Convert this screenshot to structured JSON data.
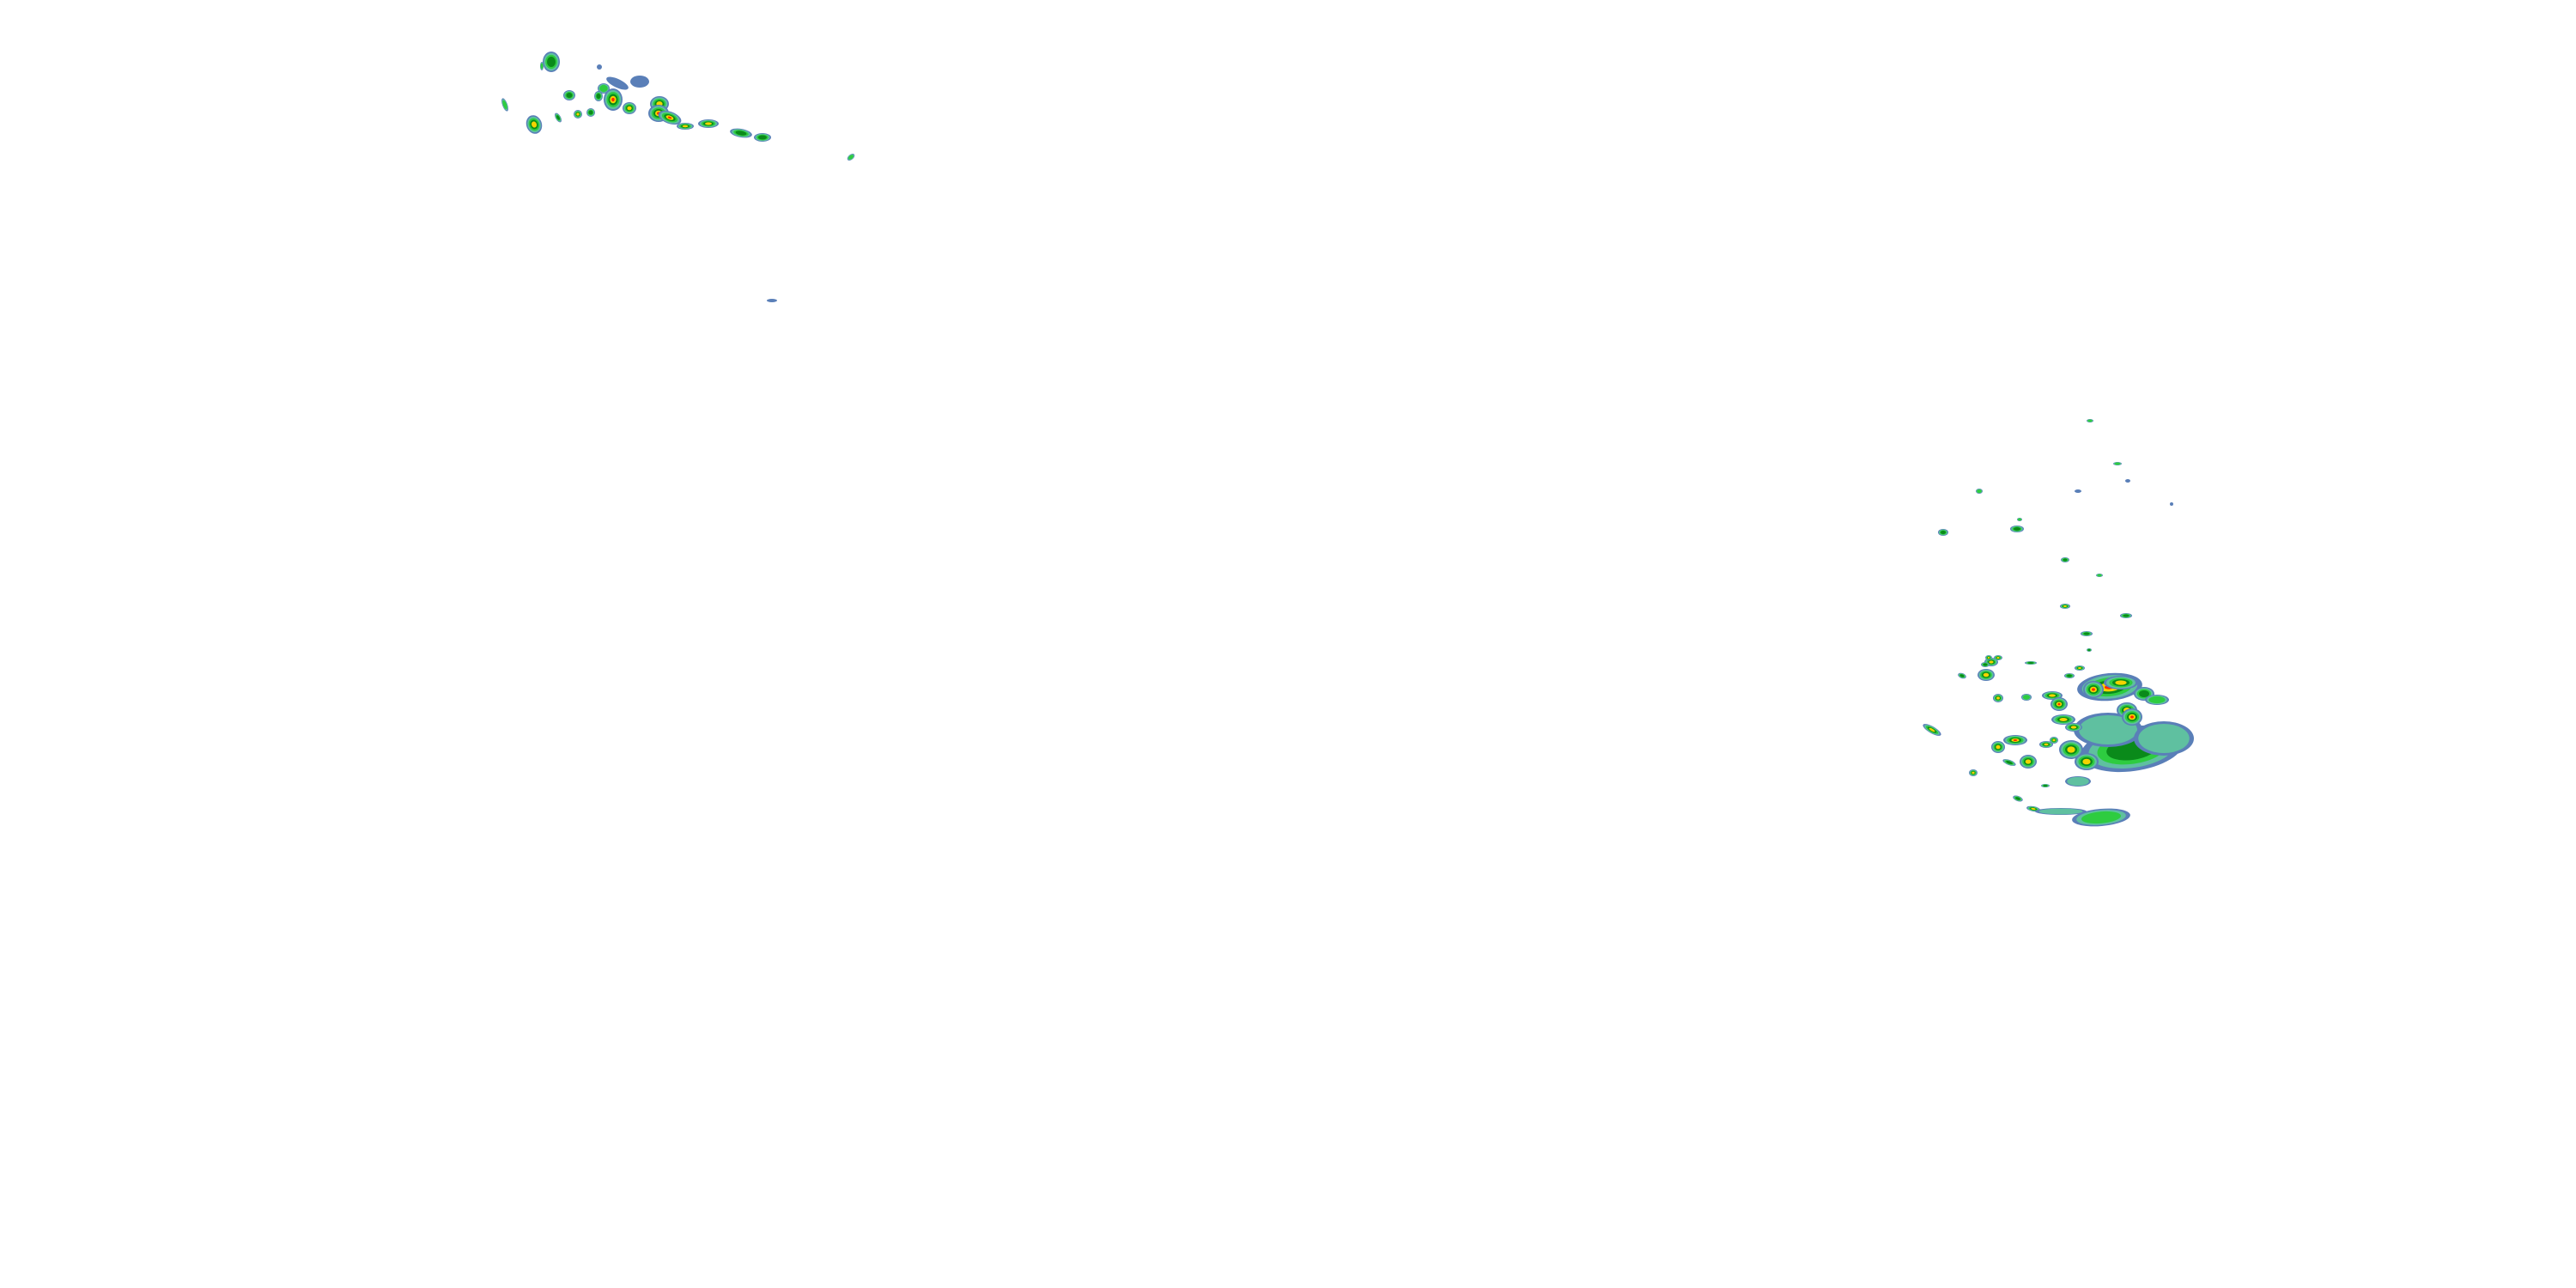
{
  "layer": "radar-reflectivity-overlay",
  "palette": {
    "level_1": "#5a7fb8",
    "level_2": "#5fc0a0",
    "level_3": "#2ecc40",
    "level_4": "#0a8a1a",
    "level_5": "#f5d300",
    "level_6": "#ff2a00",
    "orange": "#ff9a00",
    "background": "#ffffff"
  }
}
